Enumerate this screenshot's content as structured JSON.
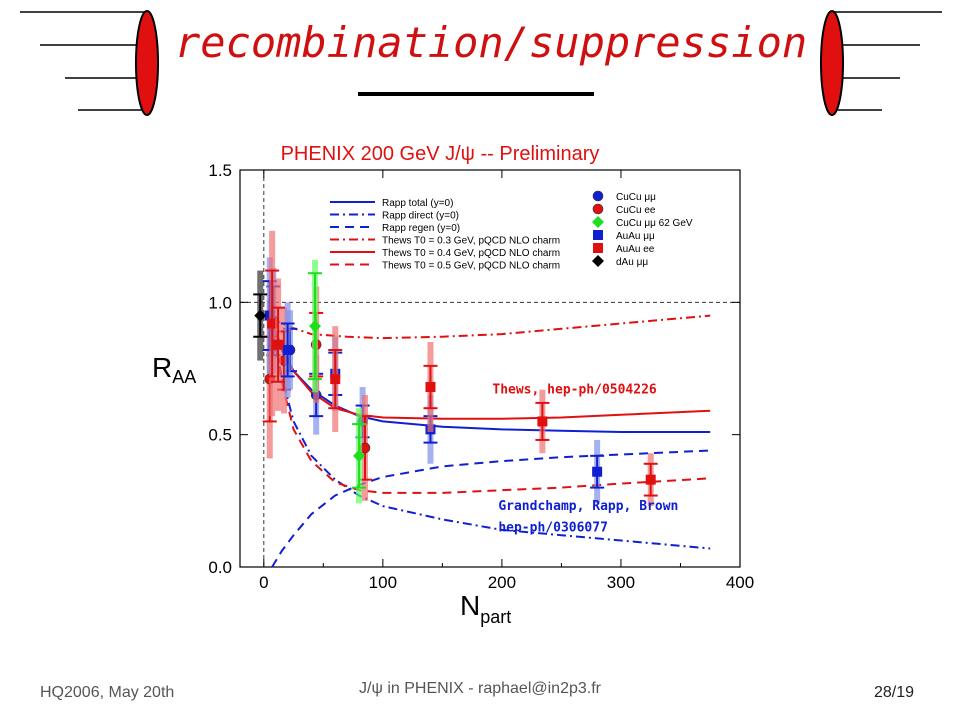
{
  "slide": {
    "title": "recombination/suppression",
    "footer_left": "HQ2006, May 20th",
    "footer_center": "J/ψ in PHENIX - raphael@in2p3.fr",
    "footer_right": "28/19"
  },
  "colors": {
    "title": "#d01010",
    "blue": "#1020d0",
    "red": "#e01010",
    "green": "#20dd20",
    "black": "#000000"
  },
  "chart_data": {
    "type": "scatter",
    "title": "PHENIX 200 GeV J/ψ -- Preliminary",
    "xlabel": "N",
    "xlabel_sub": "part",
    "ylabel": "R",
    "ylabel_sub": "AA",
    "xlim": [
      -20,
      400
    ],
    "ylim": [
      0,
      1.5
    ],
    "xticks": [
      "0",
      "100",
      "200",
      "300",
      "400"
    ],
    "yticks": [
      "0.0",
      "0.5",
      "1.0",
      "1.5"
    ],
    "reference_line_y": 1.0,
    "reference_line_x": 0,
    "legend_position": "top",
    "curves": [
      {
        "name": "Rapp total (y=0)",
        "color": "#1020d0",
        "style": "solid",
        "points": [
          [
            7,
            0.92
          ],
          [
            15,
            0.82
          ],
          [
            25,
            0.74
          ],
          [
            40,
            0.67
          ],
          [
            60,
            0.61
          ],
          [
            80,
            0.57
          ],
          [
            100,
            0.55
          ],
          [
            150,
            0.53
          ],
          [
            200,
            0.52
          ],
          [
            250,
            0.515
          ],
          [
            300,
            0.51
          ],
          [
            375,
            0.51
          ]
        ]
      },
      {
        "name": "Rapp direct (y=0)",
        "color": "#1020d0",
        "style": "dashdot",
        "points": [
          [
            7,
            0.9
          ],
          [
            15,
            0.72
          ],
          [
            25,
            0.55
          ],
          [
            40,
            0.42
          ],
          [
            60,
            0.33
          ],
          [
            80,
            0.27
          ],
          [
            100,
            0.23
          ],
          [
            150,
            0.18
          ],
          [
            200,
            0.14
          ],
          [
            250,
            0.12
          ],
          [
            300,
            0.1
          ],
          [
            375,
            0.07
          ]
        ]
      },
      {
        "name": "Rapp regen (y=0)",
        "color": "#1020d0",
        "style": "dashed",
        "points": [
          [
            7,
            0.0
          ],
          [
            15,
            0.06
          ],
          [
            25,
            0.12
          ],
          [
            40,
            0.2
          ],
          [
            60,
            0.27
          ],
          [
            80,
            0.31
          ],
          [
            100,
            0.34
          ],
          [
            150,
            0.38
          ],
          [
            200,
            0.4
          ],
          [
            250,
            0.415
          ],
          [
            300,
            0.425
          ],
          [
            375,
            0.44
          ]
        ]
      },
      {
        "name": "Thews T0 = 0.3 GeV, pQCD NLO charm",
        "color": "#e01010",
        "style": "dashdot",
        "points": [
          [
            7,
            0.94
          ],
          [
            20,
            0.91
          ],
          [
            40,
            0.88
          ],
          [
            70,
            0.87
          ],
          [
            100,
            0.865
          ],
          [
            150,
            0.87
          ],
          [
            200,
            0.88
          ],
          [
            250,
            0.9
          ],
          [
            300,
            0.92
          ],
          [
            375,
            0.95
          ]
        ]
      },
      {
        "name": "Thews T0 = 0.4 GeV, pQCD NLO charm",
        "color": "#e01010",
        "style": "solid",
        "points": [
          [
            7,
            0.93
          ],
          [
            15,
            0.83
          ],
          [
            25,
            0.74
          ],
          [
            40,
            0.66
          ],
          [
            60,
            0.6
          ],
          [
            80,
            0.575
          ],
          [
            100,
            0.565
          ],
          [
            150,
            0.56
          ],
          [
            200,
            0.56
          ],
          [
            250,
            0.565
          ],
          [
            300,
            0.575
          ],
          [
            375,
            0.59
          ]
        ]
      },
      {
        "name": "Thews T0 = 0.5 GeV, pQCD NLO charm",
        "color": "#e01010",
        "style": "dashed",
        "points": [
          [
            7,
            0.92
          ],
          [
            15,
            0.7
          ],
          [
            25,
            0.52
          ],
          [
            40,
            0.4
          ],
          [
            60,
            0.32
          ],
          [
            80,
            0.29
          ],
          [
            100,
            0.28
          ],
          [
            150,
            0.28
          ],
          [
            200,
            0.29
          ],
          [
            250,
            0.3
          ],
          [
            300,
            0.315
          ],
          [
            375,
            0.335
          ]
        ]
      }
    ],
    "point_legend": [
      {
        "name": "CuCu μμ",
        "color": "#1020d0",
        "marker": "circle"
      },
      {
        "name": "CuCu ee",
        "color": "#e01010",
        "marker": "circle"
      },
      {
        "name": "CuCu μμ 62 GeV",
        "color": "#20dd20",
        "marker": "diamond"
      },
      {
        "name": "AuAu μμ",
        "color": "#1020d0",
        "marker": "square"
      },
      {
        "name": "AuAu ee",
        "color": "#e01010",
        "marker": "square"
      },
      {
        "name": "dAu μμ",
        "color": "#000000",
        "marker": "diamond"
      }
    ],
    "series": [
      {
        "name": "CuCu μμ",
        "color": "#1020d0",
        "marker": "circle",
        "points": [
          {
            "x": 8,
            "y": 0.93,
            "err": 0.13,
            "sys": 0.2
          },
          {
            "x": 22,
            "y": 0.82,
            "err": 0.08,
            "sys": 0.15
          },
          {
            "x": 44,
            "y": 0.65,
            "err": 0.08,
            "sys": 0.15
          },
          {
            "x": 83,
            "y": 0.55,
            "err": 0.06,
            "sys": 0.13
          }
        ]
      },
      {
        "name": "CuCu ee",
        "color": "#e01010",
        "marker": "circle",
        "points": [
          {
            "x": 5,
            "y": 0.71,
            "err": 0.16,
            "sys": 0.3
          },
          {
            "x": 17,
            "y": 0.78,
            "err": 0.11,
            "sys": 0.2
          },
          {
            "x": 44,
            "y": 0.84,
            "err": 0.12,
            "sys": 0.22
          },
          {
            "x": 85,
            "y": 0.45,
            "err": 0.12,
            "sys": 0.2
          }
        ]
      },
      {
        "name": "CuCu μμ 62 GeV",
        "color": "#20dd20",
        "marker": "diamond",
        "points": [
          {
            "x": 43,
            "y": 0.91,
            "err": 0.2,
            "sys": 0.25
          },
          {
            "x": 80,
            "y": 0.42,
            "err": 0.12,
            "sys": 0.18
          }
        ]
      },
      {
        "name": "AuAu μμ",
        "color": "#1020d0",
        "marker": "square",
        "points": [
          {
            "x": 5,
            "y": 0.95,
            "err": 0.13,
            "sys": 0.22
          },
          {
            "x": 20,
            "y": 0.82,
            "err": 0.1,
            "sys": 0.18
          },
          {
            "x": 60,
            "y": 0.73,
            "err": 0.08,
            "sys": 0.14
          },
          {
            "x": 140,
            "y": 0.52,
            "err": 0.05,
            "sys": 0.13
          },
          {
            "x": 280,
            "y": 0.36,
            "err": 0.06,
            "sys": 0.12
          }
        ]
      },
      {
        "name": "AuAu ee",
        "color": "#e01010",
        "marker": "square",
        "points": [
          {
            "x": 7,
            "y": 0.92,
            "err": 0.2,
            "sys": 0.35
          },
          {
            "x": 12,
            "y": 0.84,
            "err": 0.14,
            "sys": 0.25
          },
          {
            "x": 60,
            "y": 0.71,
            "err": 0.11,
            "sys": 0.2
          },
          {
            "x": 140,
            "y": 0.68,
            "err": 0.08,
            "sys": 0.17
          },
          {
            "x": 234,
            "y": 0.55,
            "err": 0.07,
            "sys": 0.12
          },
          {
            "x": 325,
            "y": 0.33,
            "err": 0.06,
            "sys": 0.1
          }
        ]
      },
      {
        "name": "dAu μμ",
        "color": "#000000",
        "marker": "diamond",
        "points": [
          {
            "x": -3,
            "y": 0.95,
            "err": 0.08,
            "sys": 0.17
          }
        ]
      }
    ],
    "annotations": [
      {
        "text": "Thews, hep-ph/0504226",
        "color": "#e01010",
        "x": 192,
        "y": 0.655
      },
      {
        "text": "Grandchamp, Rapp, Brown",
        "color": "#1020d0",
        "x": 197,
        "y": 0.215
      },
      {
        "text": "hep-ph/0306077",
        "color": "#1020d0",
        "x": 197,
        "y": 0.135
      }
    ]
  }
}
